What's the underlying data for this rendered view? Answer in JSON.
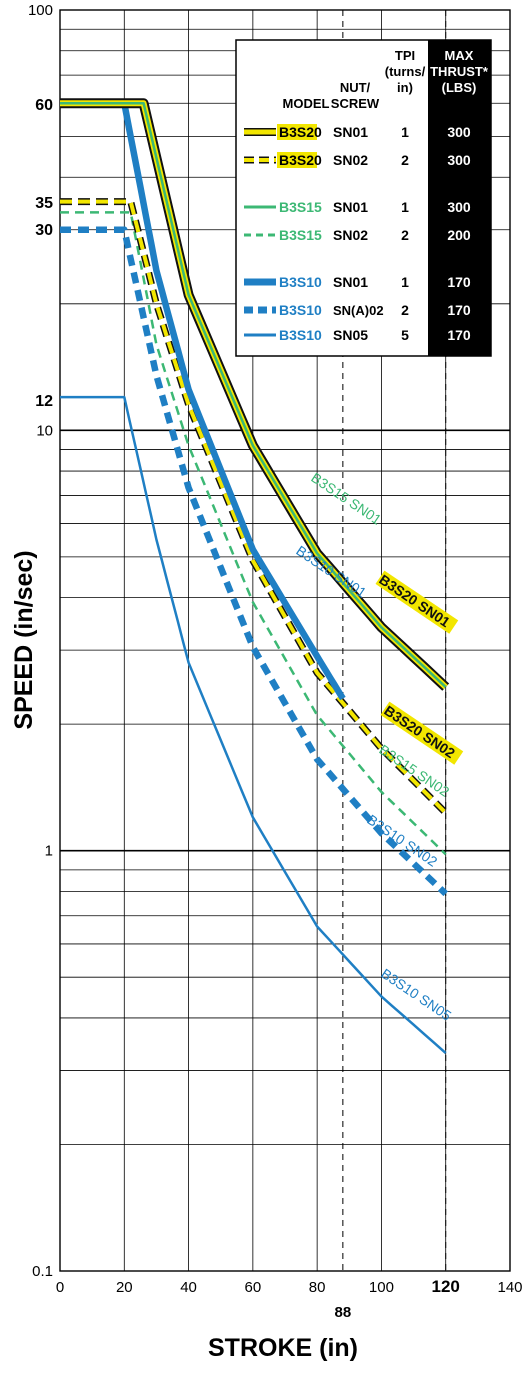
{
  "chart_data": {
    "type": "line",
    "xlabel": "STROKE (in)",
    "ylabel": "SPEED (in/sec)",
    "xlim": [
      0,
      140
    ],
    "ylim": [
      0.1,
      100
    ],
    "yscale": "log",
    "x_ticks": [
      "0",
      "20",
      "40",
      "60",
      "80",
      "100",
      "120",
      "140"
    ],
    "y_ticks": [
      "0.1",
      "1",
      "10",
      "100"
    ],
    "x_marker": "88",
    "x_bold": "120",
    "y_callouts": [
      "60",
      "35",
      "30",
      "12"
    ],
    "grid": true,
    "legend_location": "top-right",
    "legend": {
      "headers": {
        "model": "MODEL",
        "nut": "NUT/\nSCREW",
        "tpi": "TPI\n(turns/\nin)",
        "thrust": "MAX\nTHRUST*\n(LBS)"
      },
      "rows": [
        {
          "model": "B3S20",
          "nut": "SN01",
          "tpi": "1",
          "thrust": "300"
        },
        {
          "model": "B3S20",
          "nut": "SN02",
          "tpi": "2",
          "thrust": "300"
        },
        {
          "model": "B3S15",
          "nut": "SN01",
          "tpi": "1",
          "thrust": "300"
        },
        {
          "model": "B3S15",
          "nut": "SN02",
          "tpi": "2",
          "thrust": "200"
        },
        {
          "model": "B3S10",
          "nut": "SN01",
          "tpi": "1",
          "thrust": "170"
        },
        {
          "model": "B3S10",
          "nut": "SN(A)02",
          "tpi": "2",
          "thrust": "170"
        },
        {
          "model": "B3S10",
          "nut": "SN05",
          "tpi": "5",
          "thrust": "170"
        }
      ]
    },
    "series": [
      {
        "label": "B3S20 SN01",
        "flat_speed": 60,
        "knee": 26,
        "points": [
          [
            0,
            60
          ],
          [
            26,
            60
          ],
          [
            40,
            21
          ],
          [
            60,
            9.2
          ],
          [
            80,
            5.1
          ],
          [
            100,
            3.4
          ],
          [
            120,
            2.45
          ]
        ],
        "color": "#f2e600",
        "outline": "#111111",
        "dash": false
      },
      {
        "label": "B3S15 SN01",
        "flat_speed": 60,
        "knee": 26,
        "points": [
          [
            0,
            60
          ],
          [
            26,
            60
          ],
          [
            40,
            21
          ],
          [
            60,
            9.2
          ],
          [
            80,
            5.1
          ],
          [
            100,
            3.4
          ],
          [
            120,
            2.45
          ]
        ],
        "color": "#3cb874",
        "dash": false
      },
      {
        "label": "B3S10 SN01",
        "flat_speed": 60,
        "knee": 20,
        "points": [
          [
            0,
            60
          ],
          [
            20,
            60
          ],
          [
            30,
            24
          ],
          [
            40,
            12.5
          ],
          [
            60,
            5.2
          ],
          [
            80,
            2.9
          ],
          [
            88,
            2.3
          ]
        ],
        "color": "#1f7fc4",
        "dash": false
      },
      {
        "label": "B3S20 SN02",
        "flat_speed": 35,
        "knee": 22,
        "points": [
          [
            0,
            35
          ],
          [
            22,
            35
          ],
          [
            30,
            20
          ],
          [
            40,
            11.5
          ],
          [
            60,
            4.9
          ],
          [
            80,
            2.65
          ],
          [
            100,
            1.75
          ],
          [
            120,
            1.23
          ]
        ],
        "color": "#f2e600",
        "outline": "#111111",
        "dash": true
      },
      {
        "label": "B3S15 SN02",
        "flat_speed": 33,
        "knee": 22,
        "points": [
          [
            0,
            33
          ],
          [
            22,
            33
          ],
          [
            30,
            16
          ],
          [
            40,
            9.2
          ],
          [
            60,
            3.9
          ],
          [
            80,
            2.1
          ],
          [
            100,
            1.38
          ],
          [
            120,
            0.98
          ]
        ],
        "color": "#3cb874",
        "dash": true
      },
      {
        "label": "B3S10 SN02",
        "flat_speed": 30,
        "knee": 20,
        "points": [
          [
            0,
            30
          ],
          [
            20,
            30
          ],
          [
            30,
            13.5
          ],
          [
            40,
            7.3
          ],
          [
            60,
            3.05
          ],
          [
            80,
            1.65
          ],
          [
            100,
            1.1
          ],
          [
            120,
            0.79
          ]
        ],
        "color": "#1f7fc4",
        "dash": true
      },
      {
        "label": "B3S10 SN05",
        "flat_speed": 12,
        "knee": 20,
        "points": [
          [
            0,
            12
          ],
          [
            20,
            12
          ],
          [
            30,
            5.5
          ],
          [
            40,
            2.8
          ],
          [
            60,
            1.2
          ],
          [
            80,
            0.66
          ],
          [
            100,
            0.45
          ],
          [
            120,
            0.33
          ]
        ],
        "color": "#1f7fc4",
        "dash": false
      }
    ],
    "curve_labels": [
      {
        "text": "B3S15 SN01",
        "color": "#3cb874",
        "highlight": false
      },
      {
        "text": "B3S20 SN01",
        "color": "#111111",
        "highlight": true
      },
      {
        "text": "B3S10 SN01",
        "color": "#1f7fc4",
        "highlight": false
      },
      {
        "text": "B3S20 SN02",
        "color": "#111111",
        "highlight": true
      },
      {
        "text": "B3S15 SN02",
        "color": "#3cb874",
        "highlight": false
      },
      {
        "text": "B3S10 SN02",
        "color": "#1f7fc4",
        "highlight": false
      },
      {
        "text": "B3S10 SN05",
        "color": "#1f7fc4",
        "highlight": false
      }
    ],
    "colors": {
      "yellow": "#f2e600",
      "green": "#3cb874",
      "blue": "#1f7fc4",
      "black": "#111111"
    }
  }
}
